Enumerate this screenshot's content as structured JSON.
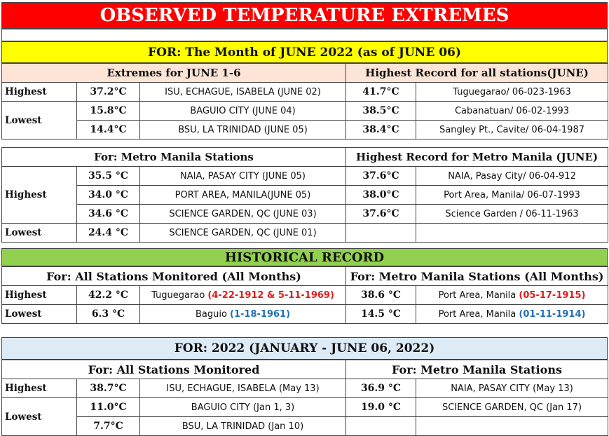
{
  "title": "OBSERVED TEMPERATURE EXTREMES",
  "june_header": "FOR:   The Month of JUNE 2022 (as of  JUNE 06)",
  "june": {
    "left_header": "Extremes for JUNE 1-6",
    "right_header": "Highest Record for all stations(JUNE)",
    "highest_label": "Highest",
    "lowest_label": "Lowest",
    "rows": [
      {
        "val": "37.2°C",
        "station": "ISU, ECHAGUE, ISABELA (JUNE 02)",
        "rec_val": "41.7°C",
        "rec_station": "Tuguegarao/ 06-023-1963"
      },
      {
        "val": "15.8°C",
        "station": "BAGUIO CITY  (JUNE 04)",
        "rec_val": "38.5°C",
        "rec_station": "Cabanatuan/ 06-02-1993"
      },
      {
        "val": "14.4°C",
        "station": "BSU, LA TRINIDAD (JUNE 05)",
        "rec_val": "38.4°C",
        "rec_station": "Sangley Pt., Cavite/ 06-04-1987"
      }
    ]
  },
  "metro": {
    "left_header": "For: Metro Manila Stations",
    "right_header": "Highest Record for Metro Manila (JUNE)",
    "highest_label": "Highest",
    "lowest_label": "Lowest",
    "rows": [
      {
        "val": "35.5 °C",
        "station": "NAIA, PASAY CITY (JUNE 05)",
        "rec_val": "37.6°C",
        "rec_station": "NAIA, Pasay City/  06-04-912"
      },
      {
        "val": "34.0 °C",
        "station": "PORT AREA, MANILA(JUNE 05)",
        "rec_val": "38.0°C",
        "rec_station": "Port Area, Manila/ 06-07-1993"
      },
      {
        "val": "34.6 °C",
        "station": "SCIENCE GARDEN, QC (JUNE 03)",
        "rec_val": "37.6°C",
        "rec_station": "Science Garden / 06-11-1963"
      },
      {
        "val": "24.4 °C",
        "station": "SCIENCE GARDEN, QC (JUNE 01)",
        "rec_val": "",
        "rec_station": ""
      }
    ]
  },
  "historical": {
    "header": "HISTORICAL RECORD",
    "left_header": "For:  All Stations Monitored (All Months)",
    "right_header": "For: Metro Manila Stations (All Months)",
    "highest_label": "Highest",
    "lowest_label": "Lowest",
    "highest": {
      "val": "42.2 °C",
      "station": "Tuguegarao",
      "date": "(4-22-1912 & 5-11-1969)",
      "mm_val": "38.6 °C",
      "mm_station": "Port Area, Manila",
      "mm_date": "(05-17-1915)"
    },
    "lowest": {
      "val": "6.3 °C",
      "station": "Baguio",
      "date": "(1-18-1961)",
      "mm_val": "14.5 °C",
      "mm_station": "Port Area, Manila",
      "mm_date": "(01-11-1914)"
    }
  },
  "year": {
    "header": "FOR:    2022 (JANUARY - JUNE 06, 2022)",
    "left_header": "For:  All Stations Monitored",
    "right_header": "For: Metro Manila Stations",
    "highest_label": "Highest",
    "lowest_label": "Lowest",
    "rows": [
      {
        "val": "38.7°C",
        "station": "ISU, ECHAGUE, ISABELA (May 13)",
        "mm_val": "36.9 °C",
        "mm_station": "NAIA, PASAY CITY (May 13)"
      },
      {
        "val": "11.0°C",
        "station": "BAGUIO CITY  (Jan 1, 3)",
        "mm_val": "19.0 °C",
        "mm_station": "SCIENCE GARDEN, QC (Jan 17)"
      },
      {
        "val": "7.7°C",
        "station": "BSU, LA TRINIDAD (Jan 10)",
        "mm_val": "",
        "mm_station": ""
      }
    ]
  },
  "colors": {
    "title_bg": "#ff0000",
    "june_bg": "#ffff00",
    "hist_bg": "#92d050",
    "year_bg": "#ddebf7",
    "sub_bg": "#fce4d6",
    "red_text": "#e11b1b",
    "blue_text": "#1f6fb5"
  }
}
